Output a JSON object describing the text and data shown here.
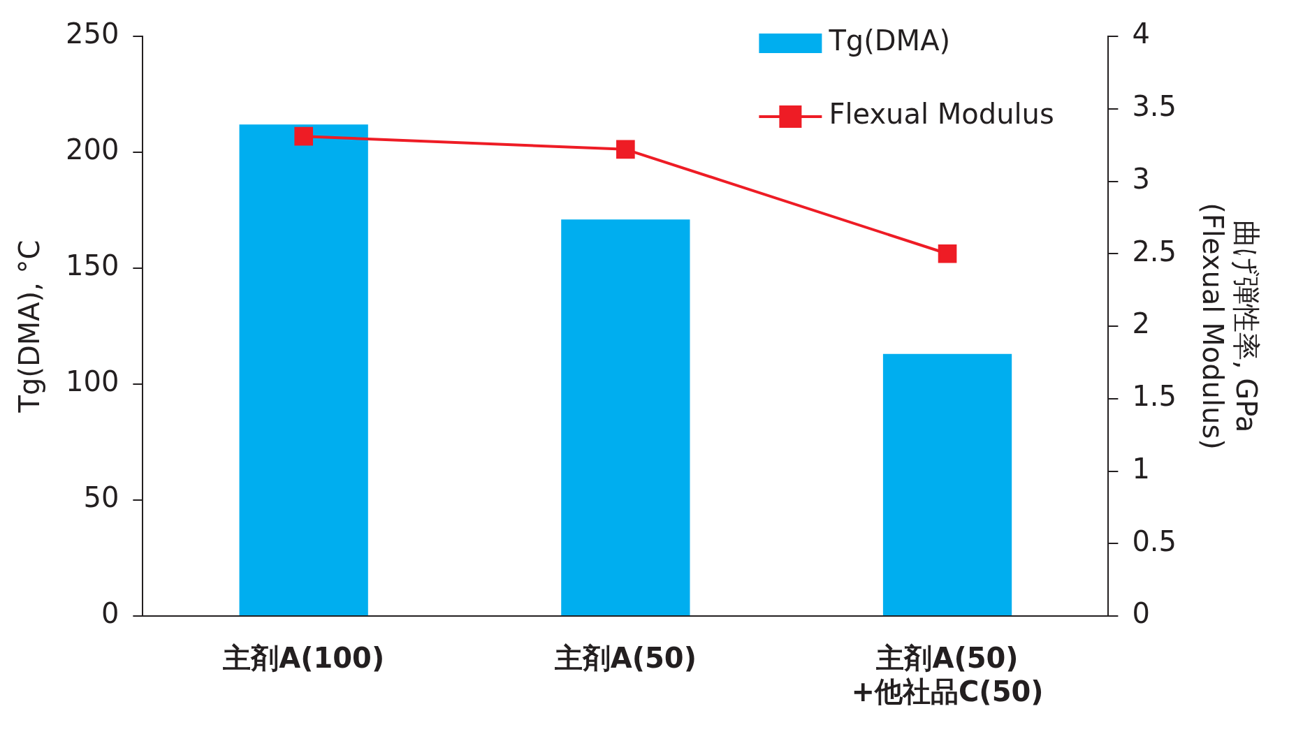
{
  "chart_data": {
    "type": "bar",
    "categories": [
      "主剤A(100)",
      "主剤A(50)",
      "主剤A(50)\n+他社品C(50)"
    ],
    "series": [
      {
        "name": "Tg(DMA)",
        "color": "#00aeef",
        "values": [
          212,
          171,
          113
        ]
      },
      {
        "name": "Flexual Modulus",
        "type": "line",
        "axis": "y2",
        "color": "#ee1c25",
        "values": [
          3.31,
          3.22,
          2.5
        ]
      }
    ],
    "ylabel": "Tg(DMA), °C",
    "y2label": "曲げ弾性率, GPa\n(Flexual Modulus)",
    "ylim": [
      0,
      250
    ],
    "yticks": [
      0,
      50,
      100,
      150,
      200,
      250
    ],
    "y2lim": [
      0,
      4
    ],
    "y2ticks": [
      0,
      0.5,
      1,
      1.5,
      2,
      2.5,
      3,
      3.5,
      4
    ],
    "grid": false,
    "legend": "top right",
    "marker": "square",
    "line_style": "solid"
  }
}
